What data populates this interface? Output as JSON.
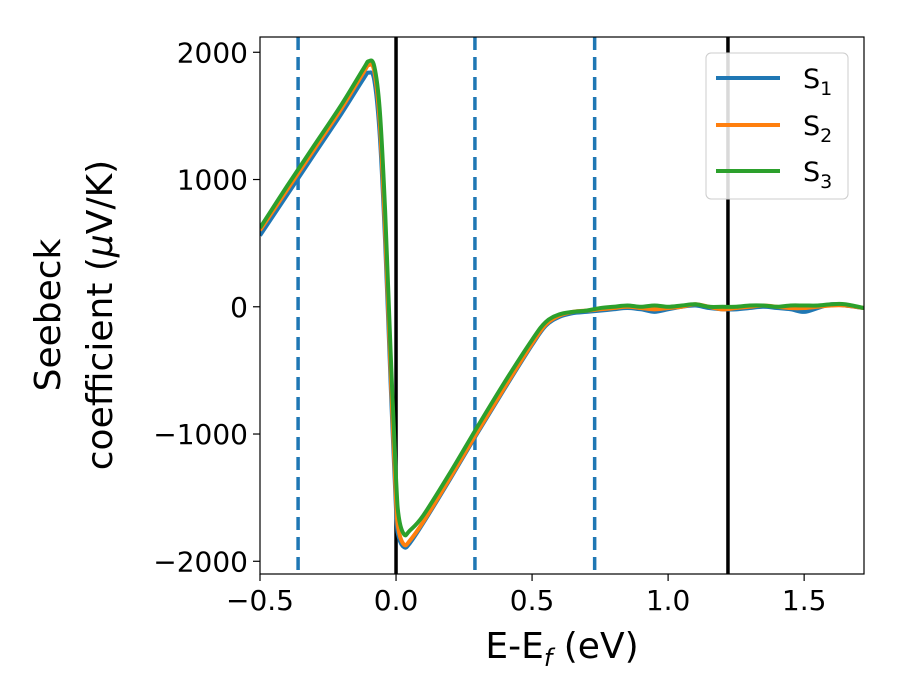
{
  "chart_data": {
    "type": "line",
    "title": "",
    "xlabel": "E-E",
    "xlabel_sub": "f",
    "xlabel_unit": " (eV)",
    "ylabel_line1": "Seebeck",
    "ylabel_line2": "coefficient  (",
    "ylabel_mu": "μ",
    "ylabel_unit": "V/K)",
    "xlim": [
      -0.5,
      1.72
    ],
    "ylim": [
      -2100,
      2120
    ],
    "xticks": [
      -0.5,
      0.0,
      0.5,
      1.0,
      1.5
    ],
    "xtick_labels": [
      "−0.5",
      "0.0",
      "0.5",
      "1.0",
      "1.5"
    ],
    "yticks": [
      -2000,
      -1000,
      0,
      1000,
      2000
    ],
    "ytick_labels": [
      "−2000",
      "−1000",
      "0",
      "1000",
      "2000"
    ],
    "grid": false,
    "legend_position": "top-right",
    "vlines_solid": [
      0.0,
      1.22
    ],
    "vlines_dashed": [
      -0.36,
      0.29,
      0.73
    ],
    "solid_color": "#000000",
    "dashed_color": "#1f77b4",
    "series": [
      {
        "name": "S",
        "sub": "1",
        "color": "#1f77b4",
        "x": [
          -0.5,
          -0.4,
          -0.3,
          -0.2,
          -0.12,
          -0.1,
          -0.08,
          -0.06,
          -0.04,
          -0.02,
          0.0,
          0.01,
          0.03,
          0.05,
          0.1,
          0.2,
          0.3,
          0.4,
          0.5,
          0.55,
          0.6,
          0.65,
          0.7,
          0.75,
          0.8,
          0.85,
          0.9,
          0.95,
          1.0,
          1.05,
          1.1,
          1.15,
          1.2,
          1.25,
          1.3,
          1.35,
          1.4,
          1.45,
          1.5,
          1.55,
          1.6,
          1.65,
          1.72
        ],
        "y": [
          560,
          880,
          1200,
          1520,
          1790,
          1840,
          1780,
          1350,
          500,
          -600,
          -1600,
          -1810,
          -1890,
          -1860,
          -1700,
          -1350,
          -990,
          -640,
          -300,
          -150,
          -80,
          -50,
          -40,
          -30,
          -20,
          -10,
          -20,
          -40,
          -20,
          0,
          10,
          -10,
          -20,
          -20,
          -10,
          0,
          -10,
          -20,
          -40,
          -10,
          20,
          10,
          -10
        ]
      },
      {
        "name": "S",
        "sub": "2",
        "color": "#ff7f0e",
        "x": [
          -0.5,
          -0.4,
          -0.3,
          -0.2,
          -0.12,
          -0.1,
          -0.08,
          -0.06,
          -0.04,
          -0.02,
          0.0,
          0.01,
          0.03,
          0.05,
          0.1,
          0.2,
          0.3,
          0.4,
          0.5,
          0.55,
          0.6,
          0.65,
          0.7,
          0.75,
          0.8,
          0.85,
          0.9,
          0.95,
          1.0,
          1.05,
          1.1,
          1.15,
          1.2,
          1.25,
          1.3,
          1.35,
          1.4,
          1.45,
          1.5,
          1.55,
          1.6,
          1.65,
          1.72
        ],
        "y": [
          600,
          920,
          1240,
          1560,
          1840,
          1900,
          1850,
          1450,
          600,
          -500,
          -1520,
          -1760,
          -1870,
          -1840,
          -1690,
          -1340,
          -980,
          -630,
          -290,
          -140,
          -70,
          -40,
          -30,
          -20,
          -10,
          0,
          -10,
          -20,
          -10,
          0,
          20,
          0,
          -20,
          -10,
          0,
          10,
          0,
          -10,
          -10,
          0,
          10,
          10,
          -10
        ]
      },
      {
        "name": "S",
        "sub": "3",
        "color": "#2ca02c",
        "x": [
          -0.5,
          -0.4,
          -0.3,
          -0.2,
          -0.12,
          -0.1,
          -0.08,
          -0.06,
          -0.04,
          -0.02,
          0.0,
          0.01,
          0.03,
          0.05,
          0.1,
          0.2,
          0.3,
          0.4,
          0.5,
          0.55,
          0.6,
          0.65,
          0.7,
          0.75,
          0.8,
          0.85,
          0.9,
          0.95,
          1.0,
          1.05,
          1.1,
          1.15,
          1.2,
          1.25,
          1.3,
          1.35,
          1.4,
          1.45,
          1.5,
          1.55,
          1.6,
          1.65,
          1.72
        ],
        "y": [
          620,
          950,
          1270,
          1590,
          1870,
          1930,
          1890,
          1550,
          750,
          -350,
          -1350,
          -1650,
          -1790,
          -1760,
          -1640,
          -1300,
          -940,
          -590,
          -260,
          -120,
          -60,
          -40,
          -30,
          -10,
          0,
          10,
          0,
          10,
          0,
          10,
          20,
          0,
          0,
          0,
          10,
          10,
          0,
          10,
          10,
          10,
          20,
          20,
          -10
        ]
      }
    ]
  }
}
